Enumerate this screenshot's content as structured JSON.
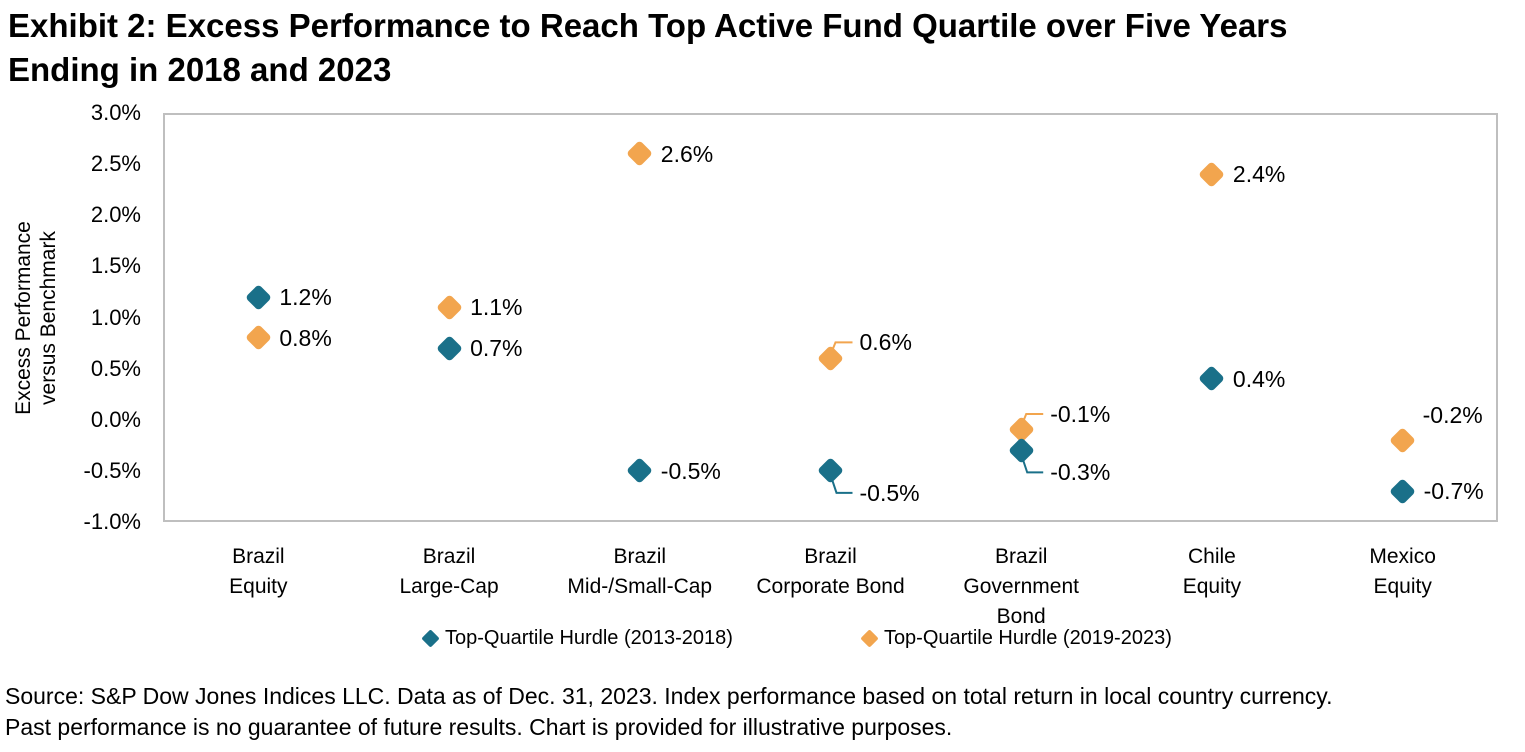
{
  "title_lines": [
    "Exhibit 2: Excess Performance to Reach Top Active Fund Quartile over Five Years",
    "Ending in 2018 and 2023"
  ],
  "y_axis": {
    "title_lines": [
      "Excess Performance",
      "versus Benchmark"
    ],
    "ticks": [
      {
        "label": "3.0%",
        "value": 3.0
      },
      {
        "label": "2.5%",
        "value": 2.5
      },
      {
        "label": "2.0%",
        "value": 2.0
      },
      {
        "label": "1.5%",
        "value": 1.5
      },
      {
        "label": "1.0%",
        "value": 1.0
      },
      {
        "label": "0.5%",
        "value": 0.5
      },
      {
        "label": "0.0%",
        "value": 0.0
      },
      {
        "label": "-0.5%",
        "value": -0.5
      },
      {
        "label": "-1.0%",
        "value": -1.0
      }
    ]
  },
  "chart_data": {
    "type": "scatter",
    "title": "Exhibit 2: Excess Performance to Reach Top Active Fund Quartile over Five Years Ending in 2018 and 2023",
    "ylabel": "Excess Performance versus Benchmark",
    "xlabel": "",
    "ylim": [
      -1.0,
      3.0
    ],
    "grid": true,
    "legend_position": "bottom",
    "categories": [
      "Brazil Equity",
      "Brazil Large-Cap",
      "Brazil Mid-/Small-Cap",
      "Brazil Corporate Bond",
      "Brazil Government Bond",
      "Chile Equity",
      "Mexico Equity"
    ],
    "category_label_lines": [
      [
        "Brazil",
        "Equity"
      ],
      [
        "Brazil",
        "Large-Cap"
      ],
      [
        "Brazil",
        "Mid-/Small-Cap"
      ],
      [
        "Brazil",
        "Corporate Bond"
      ],
      [
        "Brazil",
        "Government",
        "Bond"
      ],
      [
        "Chile",
        "Equity"
      ],
      [
        "Mexico",
        "Equity"
      ]
    ],
    "series": [
      {
        "name": "Top-Quartile Hurdle (2013-2018)",
        "color": "#1A7089",
        "values": [
          1.2,
          0.7,
          -0.5,
          -0.5,
          -0.3,
          0.4,
          -0.7
        ],
        "labels": [
          "1.2%",
          "0.7%",
          "-0.5%",
          "-0.5%",
          "-0.3%",
          "0.4%",
          "-0.7%"
        ],
        "label_placements": [
          "right",
          "right",
          "right",
          "callout-down",
          "callout-down",
          "right",
          "right"
        ]
      },
      {
        "name": "Top-Quartile Hurdle (2019-2023)",
        "color": "#F2A54E",
        "values": [
          0.8,
          1.1,
          2.6,
          0.6,
          -0.1,
          2.4,
          -0.2
        ],
        "labels": [
          "0.8%",
          "1.1%",
          "2.6%",
          "0.6%",
          "-0.1%",
          "2.4%",
          "-0.2%"
        ],
        "label_placements": [
          "right",
          "right",
          "right",
          "callout-up",
          "callout-up",
          "right",
          "above-right"
        ]
      }
    ],
    "grid_color": "#C9C9C9",
    "plot_border_color": "#BFBFBF"
  },
  "source_lines": [
    "Source: S&P Dow Jones Indices LLC. Data as of Dec. 31, 2023. Index performance based on total return in local country currency.",
    "Past performance is no guarantee of future results. Chart is provided for illustrative purposes."
  ]
}
